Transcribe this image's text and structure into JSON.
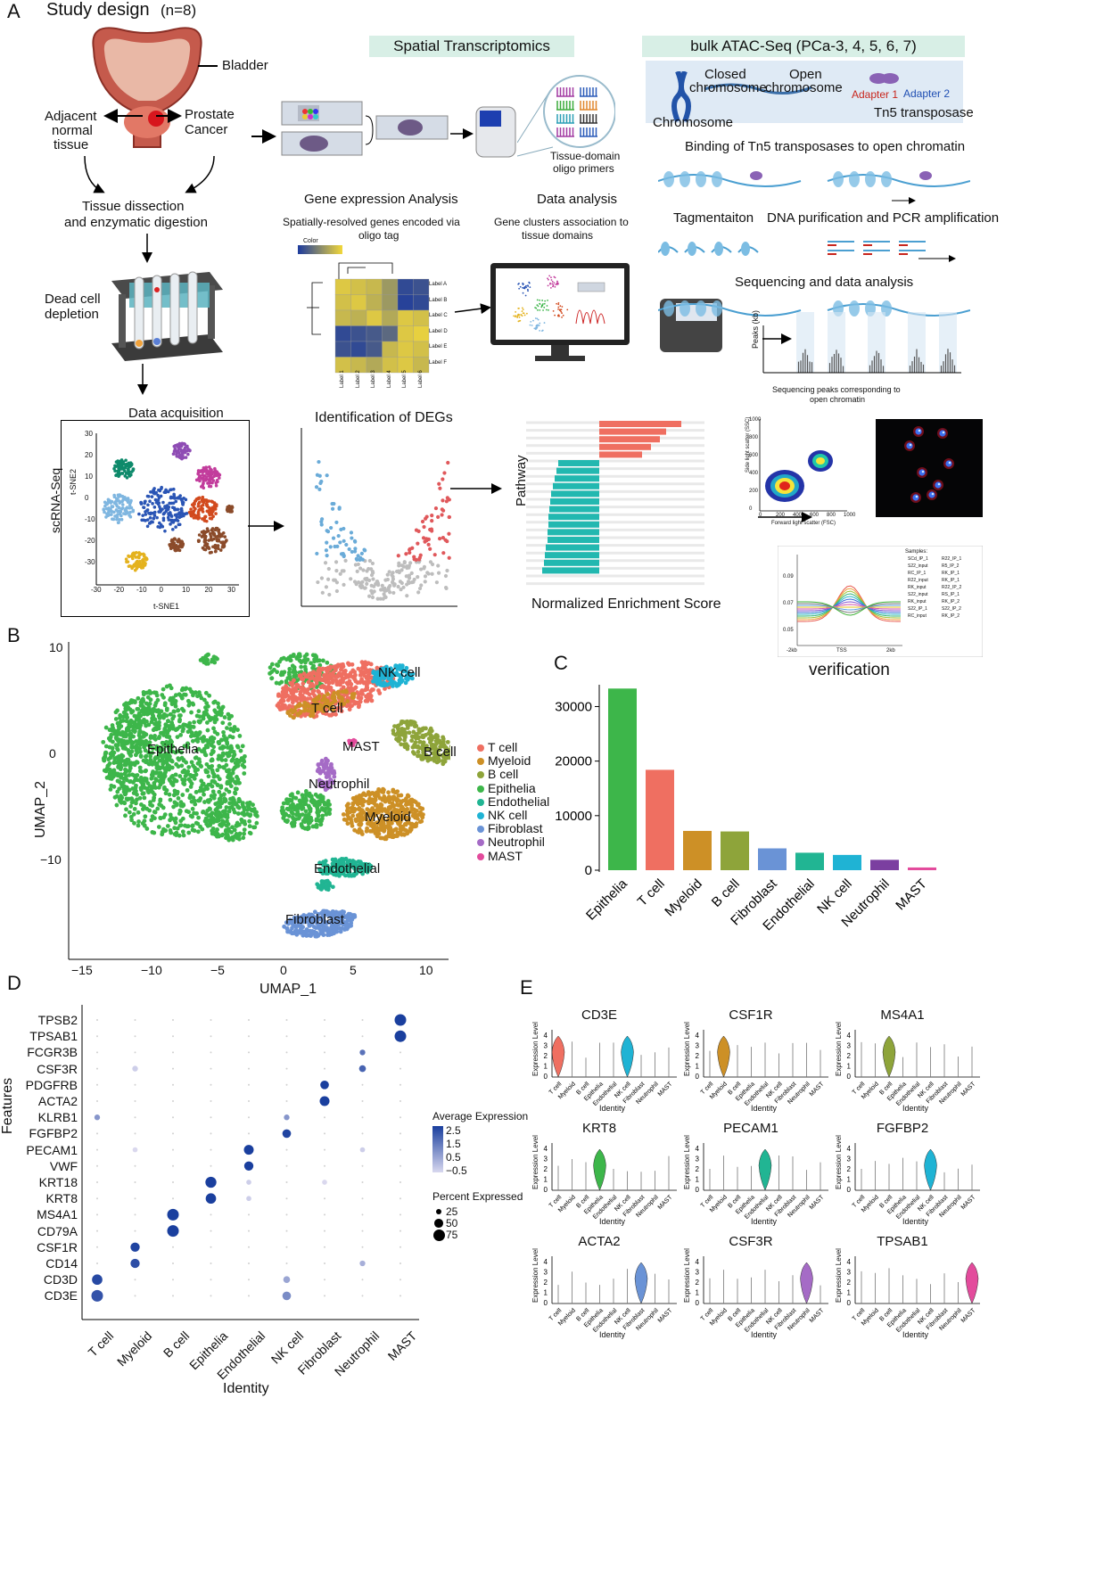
{
  "panelA": {
    "letter": "A",
    "title": "Study design",
    "n": "(n=8)",
    "bladder": "Bladder",
    "adjacent": [
      "Adjacent",
      "normal",
      "tissue"
    ],
    "prostate": [
      "Prostate",
      "Cancer"
    ],
    "dissection": [
      "Tissue dissection",
      "and enzymatic digestion"
    ],
    "deadcell": [
      "Dead cell",
      "depletion"
    ],
    "dataacq": "Data acquisition",
    "scrna": "scRNA-Seq",
    "spatial_banner": "Spatial Transcriptomics",
    "oligo": [
      "Tissue-domain",
      "oligo primers"
    ],
    "gene_expr": "Gene expression Analysis",
    "gene_expr_sub": [
      "Spatially-resolved genes encoded via",
      "oligo tag"
    ],
    "data_analysis": "Data analysis",
    "data_analysis_sub": [
      "Gene clusters association to",
      "tissue domains"
    ],
    "heatmap_color": "Color",
    "heatmap_labels_row": [
      "Label A",
      "Label B",
      "Label C",
      "Label D",
      "Label E",
      "Label F"
    ],
    "heatmap_labels_col": [
      "Label 1",
      "Label 2",
      "Label 3",
      "Label 4",
      "Label 5",
      "Label 6"
    ],
    "atac_banner": "bulk ATAC-Seq (PCa-3, 4, 5, 6, 7)",
    "closed": [
      "Closed",
      "chromosome"
    ],
    "open": [
      "Open",
      "chromosome"
    ],
    "chromosome": "Chromosome",
    "adapter1": "Adapter 1",
    "adapter2": "Adapter 2",
    "tn5": "Tn5 transposase",
    "binding": "Binding of Tn5 transposases to open chromatin",
    "tagmentation": "Tagmentaiton",
    "dna_pur": "DNA  purification and PCR amplification",
    "seq_data": "Sequencing and data analysis",
    "peaks_axis": "Peaks (kb)",
    "seq_peaks": [
      "Sequencing peaks corresponding to",
      "open chromatin"
    ],
    "degs": "Identification of DEGs",
    "pathway": "Pathway",
    "nes": "Normalized Enrichment Score",
    "verification": "verification",
    "tsne1": "t-SNE1",
    "tsne2": "t-SNE2",
    "tsne_xticks": [
      "-30",
      "-20",
      "-10",
      "0",
      "10",
      "20",
      "30"
    ],
    "tsne_yticks": [
      "30",
      "20",
      "10",
      "0",
      "-10",
      "-20",
      "-30"
    ],
    "flow_y": "Side light scatter (SSC)",
    "flow_x": "Forward light scatter (FSC)",
    "flow_xticks": [
      "0",
      "200",
      "400",
      "600",
      "800",
      "1000"
    ],
    "flow_yticks": [
      "1000",
      "800",
      "600",
      "400",
      "200",
      "0"
    ],
    "samples_title": "Samples:",
    "samples": [
      "SCd_IP_1",
      "R22_IP_1",
      "S22_input",
      "R5_IP_2",
      "RC_IP_1",
      "RK_IP_1",
      "R22_input",
      "RK_IP_1",
      "RK_input",
      "R22_IP_2",
      "S22_input",
      "RS_IP_1",
      "RK_input",
      "RK_IP_2",
      "S22_IP_1",
      "S22_IP_2",
      "RC_input",
      "RK_IP_2"
    ],
    "profile_x": [
      "-2kb",
      "TSS",
      "2kb"
    ],
    "profile_y": [
      "0.09",
      "0.07",
      "0.05"
    ]
  },
  "panelB": {
    "letter": "B",
    "xlabel": "UMAP_1",
    "ylabel": "UMAP_2",
    "xticks": [
      "−15",
      "−10",
      "−5",
      "0",
      "5",
      "10"
    ],
    "yticks": [
      "10",
      "0",
      "−10"
    ],
    "cluster_labels": [
      "T cell",
      "NK cell",
      "Epithelia",
      "MAST",
      "B cell",
      "Neutrophil",
      "Myeloid",
      "Endothelial",
      "Fibroblast"
    ],
    "legend": [
      {
        "name": "T cell",
        "color": "#ef6f61"
      },
      {
        "name": "Myeloid",
        "color": "#cd9026"
      },
      {
        "name": "B cell",
        "color": "#8ea43a"
      },
      {
        "name": "Epithelia",
        "color": "#3db64a"
      },
      {
        "name": "Endothelial",
        "color": "#21b593"
      },
      {
        "name": "NK cell",
        "color": "#1fb3d4"
      },
      {
        "name": "Fibroblast",
        "color": "#6a93d6"
      },
      {
        "name": "Neutrophil",
        "color": "#a56bc6"
      },
      {
        "name": "MAST",
        "color": "#e34b9c"
      }
    ]
  },
  "chart_data": {
    "type": "bar",
    "panel": "C",
    "categories": [
      "Epithelia",
      "T cell",
      "Myeloid",
      "B cell",
      "Fibroblast",
      "Endothelial",
      "NK cell",
      "Neutrophil",
      "MAST"
    ],
    "values": [
      33300,
      18400,
      7200,
      7100,
      4000,
      3200,
      2800,
      1900,
      500
    ],
    "colors": [
      "#3db64a",
      "#ef6f61",
      "#cd9026",
      "#8ea43a",
      "#6a93d6",
      "#21b593",
      "#1fb3d4",
      "#7b3fa0",
      "#e34b9c"
    ],
    "yticks": [
      "0",
      "10000",
      "20000",
      "30000"
    ],
    "ylim": [
      0,
      34000
    ]
  },
  "panelD": {
    "letter": "D",
    "ylabel": "Features",
    "xlabel": "Identity",
    "genes": [
      "TPSB2",
      "TPSAB1",
      "FCGR3B",
      "CSF3R",
      "PDGFRB",
      "ACTA2",
      "KLRB1",
      "FGFBP2",
      "PECAM1",
      "VWF",
      "KRT18",
      "KRT8",
      "MS4A1",
      "CD79A",
      "CSF1R",
      "CD14",
      "CD3D",
      "CD3E"
    ],
    "identities": [
      "T cell",
      "Myeloid",
      "B cell",
      "Epithelia",
      "Endothelial",
      "NK cell",
      "Fibroblast",
      "Neutrophil",
      "MAST"
    ],
    "dots": [
      {
        "g": 0,
        "i": 8,
        "s": 75,
        "e": 2.5
      },
      {
        "g": 1,
        "i": 8,
        "s": 75,
        "e": 2.5
      },
      {
        "g": 2,
        "i": 7,
        "s": 25,
        "e": 1.5
      },
      {
        "g": 3,
        "i": 1,
        "s": 25,
        "e": -0.3
      },
      {
        "g": 3,
        "i": 7,
        "s": 35,
        "e": 1.8
      },
      {
        "g": 4,
        "i": 6,
        "s": 50,
        "e": 2.5
      },
      {
        "g": 5,
        "i": 6,
        "s": 60,
        "e": 2.5
      },
      {
        "g": 6,
        "i": 0,
        "s": 25,
        "e": 0.8
      },
      {
        "g": 6,
        "i": 5,
        "s": 25,
        "e": 0.8
      },
      {
        "g": 7,
        "i": 5,
        "s": 50,
        "e": 2.4
      },
      {
        "g": 8,
        "i": 1,
        "s": 20,
        "e": -0.5
      },
      {
        "g": 8,
        "i": 4,
        "s": 60,
        "e": 2.5
      },
      {
        "g": 8,
        "i": 7,
        "s": 20,
        "e": -0.3
      },
      {
        "g": 9,
        "i": 4,
        "s": 55,
        "e": 2.5
      },
      {
        "g": 10,
        "i": 3,
        "s": 70,
        "e": 2.5
      },
      {
        "g": 10,
        "i": 4,
        "s": 20,
        "e": -0.3
      },
      {
        "g": 10,
        "i": 6,
        "s": 20,
        "e": -0.5
      },
      {
        "g": 11,
        "i": 3,
        "s": 65,
        "e": 2.5
      },
      {
        "g": 11,
        "i": 4,
        "s": 20,
        "e": -0.3
      },
      {
        "g": 12,
        "i": 2,
        "s": 75,
        "e": 2.5
      },
      {
        "g": 13,
        "i": 2,
        "s": 75,
        "e": 2.5
      },
      {
        "g": 14,
        "i": 1,
        "s": 55,
        "e": 2.4
      },
      {
        "g": 15,
        "i": 1,
        "s": 55,
        "e": 2.2
      },
      {
        "g": 15,
        "i": 7,
        "s": 25,
        "e": 0.3
      },
      {
        "g": 16,
        "i": 0,
        "s": 65,
        "e": 2.3
      },
      {
        "g": 16,
        "i": 5,
        "s": 35,
        "e": 0.5
      },
      {
        "g": 17,
        "i": 0,
        "s": 75,
        "e": 2.1
      },
      {
        "g": 17,
        "i": 5,
        "s": 50,
        "e": 1.0
      }
    ],
    "legend_avg_title": "Average Expression",
    "legend_avg_ticks": [
      "2.5",
      "1.5",
      "0.5",
      "−0.5"
    ],
    "legend_pct_title": "Percent Expressed",
    "legend_pct_ticks": [
      "25",
      "50",
      "75"
    ]
  },
  "panelE": {
    "letter": "E",
    "ylabel": "Expression Level",
    "xlabel": "Identity",
    "yticks": [
      "0",
      "1",
      "2",
      "3",
      "4"
    ],
    "identities": [
      "T cell",
      "Myeloid",
      "B cell",
      "Epithelia",
      "Endothelial",
      "NK cell",
      "Fibroblast",
      "Neutrophil",
      "MAST"
    ],
    "plots": [
      {
        "gene": "CD3E",
        "color": "#ef6f61",
        "color2": "#1fb3d4",
        "peaks": [
          0,
          5
        ]
      },
      {
        "gene": "CSF1R",
        "color": "#cd9026",
        "peaks": [
          1
        ]
      },
      {
        "gene": "MS4A1",
        "color": "#8ea43a",
        "peaks": [
          2
        ]
      },
      {
        "gene": "KRT8",
        "color": "#3db64a",
        "peaks": [
          3
        ]
      },
      {
        "gene": "PECAM1",
        "color": "#21b593",
        "peaks": [
          4
        ]
      },
      {
        "gene": "FGFBP2",
        "color": "#1fb3d4",
        "peaks": [
          5
        ]
      },
      {
        "gene": "ACTA2",
        "color": "#6a93d6",
        "peaks": [
          6
        ]
      },
      {
        "gene": "CSF3R",
        "color": "#a56bc6",
        "peaks": [
          7
        ]
      },
      {
        "gene": "TPSAB1",
        "color": "#e34b9c",
        "peaks": [
          8
        ]
      }
    ]
  }
}
